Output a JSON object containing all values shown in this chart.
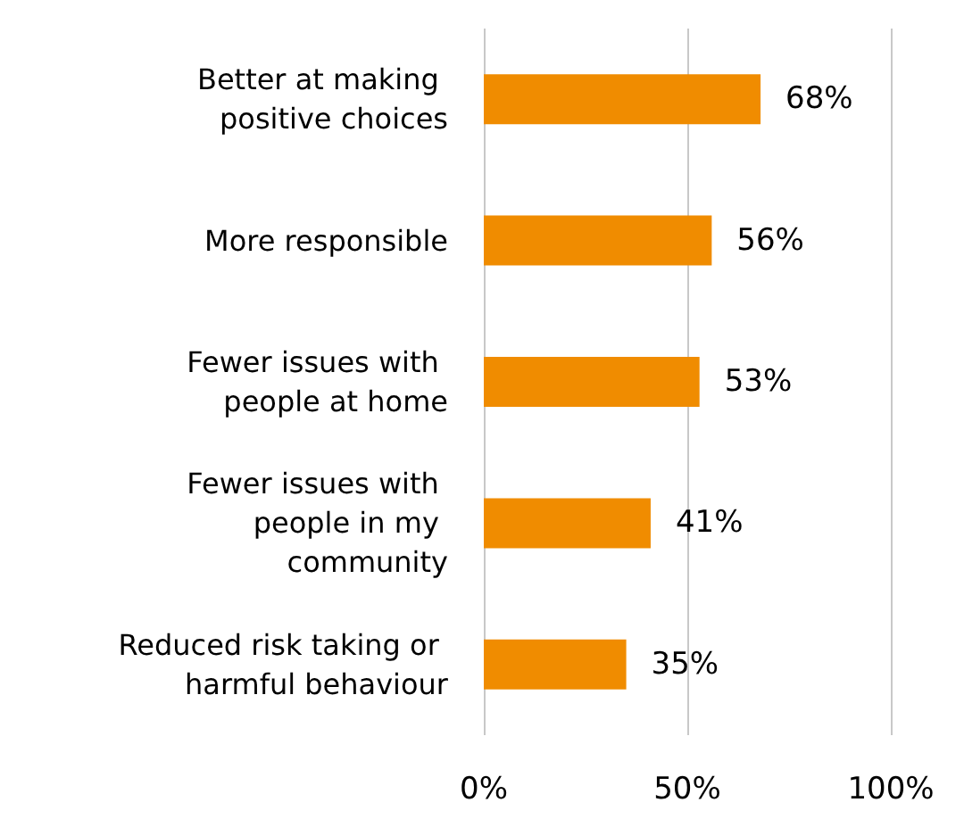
{
  "chart_data": {
    "type": "bar",
    "orientation": "horizontal",
    "categories": [
      "Better at making positive choices",
      "More responsible",
      "Fewer issues with people at home",
      "Fewer issues with people in my community",
      "Reduced risk taking or harmful behaviour"
    ],
    "values": [
      68,
      56,
      53,
      41,
      35
    ],
    "value_labels": [
      "68%",
      "56%",
      "53%",
      "41%",
      "35%"
    ],
    "color": "#f08c00",
    "xlim": [
      0,
      100
    ],
    "xticks": [
      {
        "value": 0,
        "label": "0%"
      },
      {
        "value": 50,
        "label": "50%"
      },
      {
        "value": 100,
        "label": "100%"
      }
    ],
    "grid": "x"
  }
}
